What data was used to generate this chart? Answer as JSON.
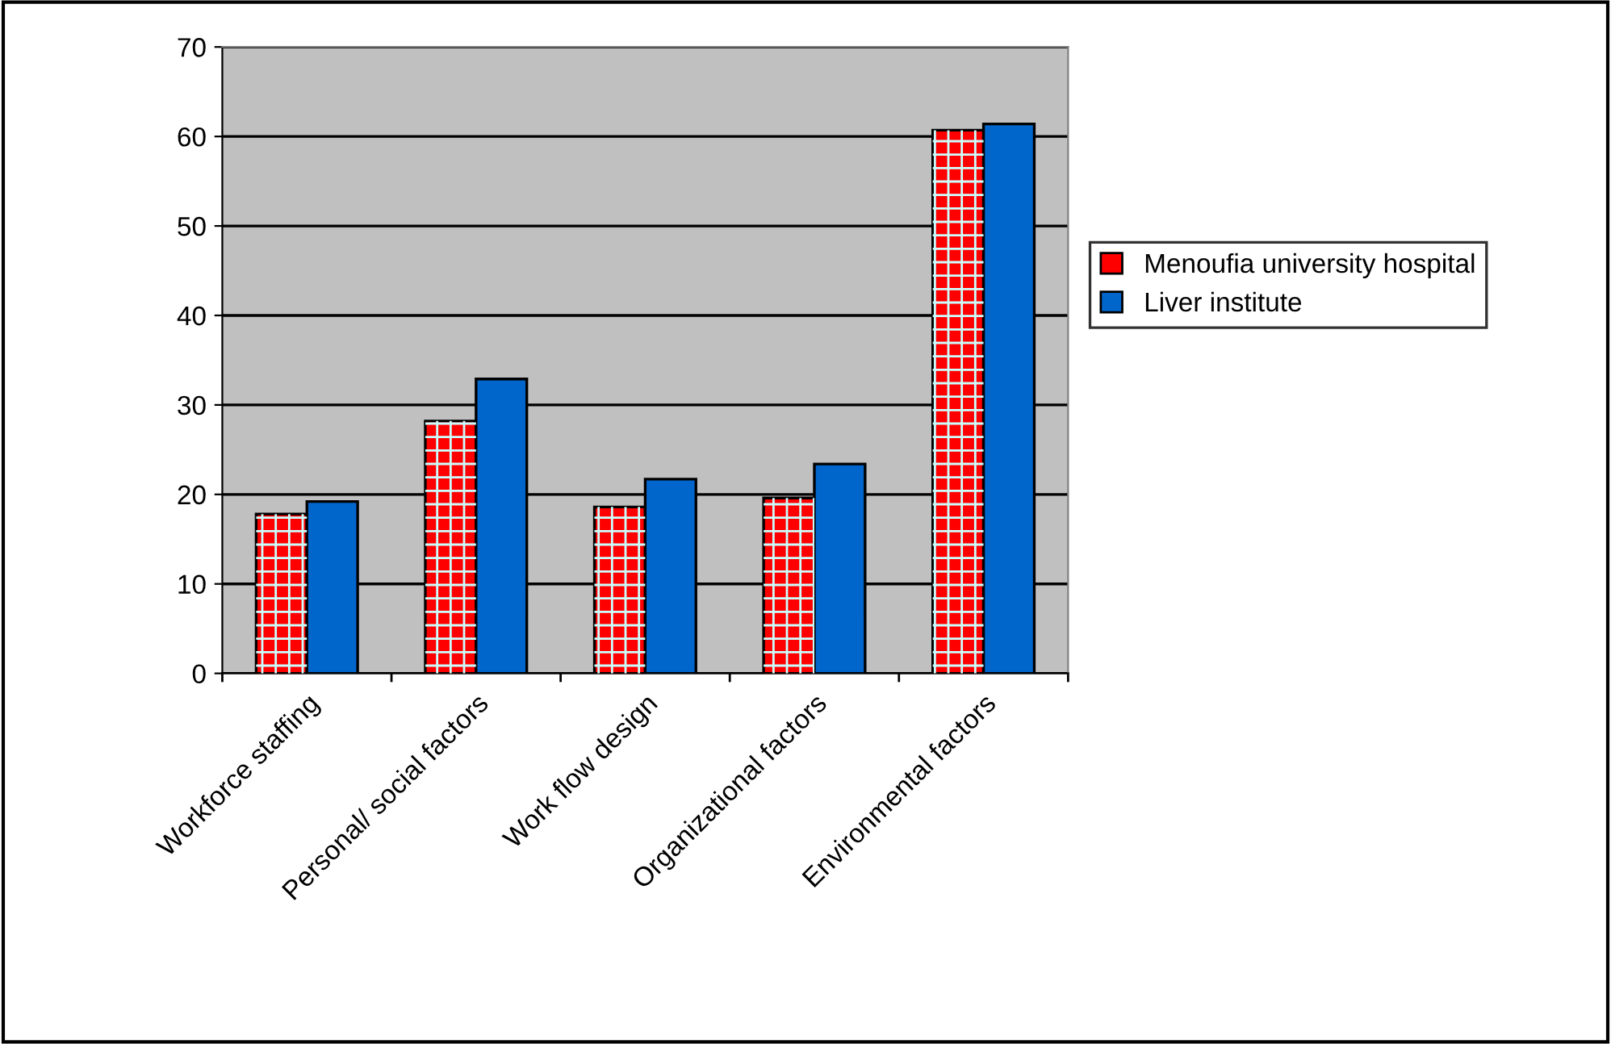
{
  "chart_data": {
    "type": "bar",
    "categories": [
      "Workforce staffing",
      "Personal/ social factors",
      "Work flow design",
      "Organizational factors",
      "Environmental factors"
    ],
    "series": [
      {
        "name": "Menoufia university hospital",
        "color": "#ff0000",
        "values": [
          17.8,
          28.2,
          18.6,
          19.6,
          60.7
        ]
      },
      {
        "name": "Liver institute",
        "color": "#0066cc",
        "values": [
          19.2,
          32.9,
          21.7,
          23.4,
          61.4
        ]
      }
    ],
    "ylim": [
      0,
      70
    ],
    "yticks": [
      0,
      10,
      20,
      30,
      40,
      50,
      60,
      70
    ],
    "grid": "y",
    "legend": "right"
  }
}
